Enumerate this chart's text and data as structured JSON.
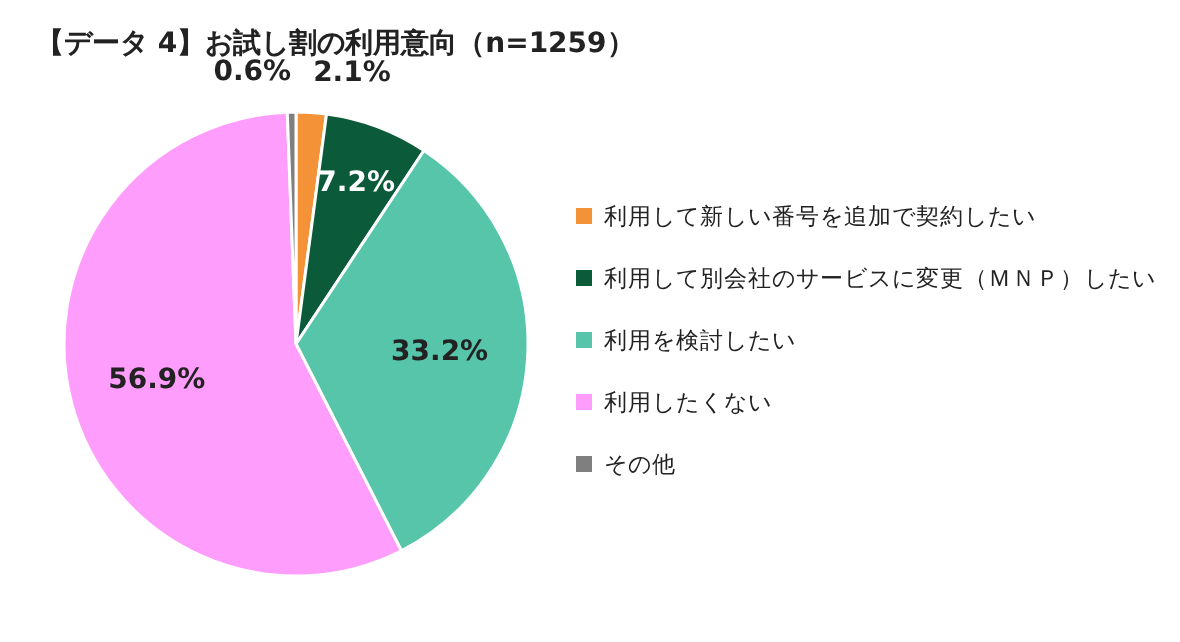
{
  "chart_data": {
    "type": "pie",
    "title": "【データ 4】お試し割の利用意向（n=1259）",
    "categories": [
      "利用して新しい番号を追加で契約したい",
      "利用して別会社のサービスに変更（ＭＮＰ）したい",
      "利用を検討したい",
      "利用したくない",
      "その他"
    ],
    "values": [
      2.1,
      7.2,
      33.2,
      56.9,
      0.6
    ],
    "colors": [
      "#f39237",
      "#0b5b3b",
      "#56c5a9",
      "#ff9dfd",
      "#7f7f7f"
    ],
    "value_labels": [
      "2.1%",
      "7.2%",
      "33.2%",
      "56.9%",
      "0.6%"
    ],
    "legend": "right"
  }
}
